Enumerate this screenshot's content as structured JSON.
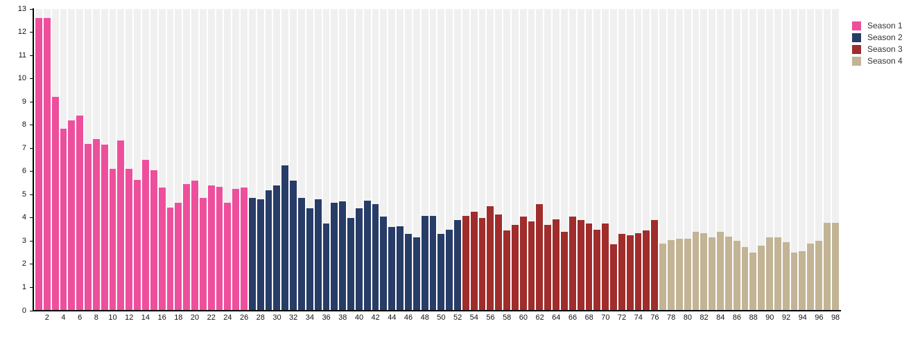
{
  "page": {
    "background": "#ffffff"
  },
  "legend": {
    "position": "top-right",
    "items": [
      {
        "label": "Season 1",
        "color": "#ee4f9d"
      },
      {
        "label": "Season 2",
        "color": "#273c67"
      },
      {
        "label": "Season 3",
        "color": "#a02c2c"
      },
      {
        "label": "Season 4",
        "color": "#c2b494"
      }
    ]
  },
  "chart_data": {
    "type": "bar",
    "title": "",
    "xlabel": "",
    "ylabel": "",
    "ylim": [
      0,
      13
    ],
    "yticks": [
      0,
      1,
      2,
      3,
      4,
      5,
      6,
      7,
      8,
      9,
      10,
      11,
      12,
      13
    ],
    "x_label_step": 2,
    "xticks": [
      2,
      4,
      6,
      8,
      10,
      12,
      14,
      16,
      18,
      20,
      22,
      24,
      26,
      28,
      30,
      32,
      34,
      36,
      38,
      40,
      42,
      44,
      46,
      48,
      50,
      52,
      54,
      56,
      58,
      60,
      62,
      64,
      66,
      68,
      70,
      72,
      74,
      76,
      78,
      80,
      82,
      84,
      86,
      88,
      90,
      92,
      94,
      96,
      98
    ],
    "grid": "off",
    "background_stripes": {
      "per_bar": true,
      "color": "#f0f0f0"
    },
    "legend_position": "top-right",
    "series": [
      {
        "name": "Season 1",
        "color": "#ee4f9d",
        "episode_range": [
          1,
          26
        ],
        "values": [
          12.6,
          12.6,
          9.2,
          7.85,
          8.2,
          8.4,
          7.2,
          7.4,
          7.15,
          6.1,
          7.35,
          6.1,
          5.65,
          6.5,
          6.05,
          5.3,
          4.45,
          4.65,
          5.45,
          5.6,
          4.85,
          5.4,
          5.35,
          4.65,
          5.25,
          5.3
        ]
      },
      {
        "name": "Season 2",
        "color": "#273c67",
        "episode_range": [
          27,
          52
        ],
        "values": [
          4.85,
          4.8,
          5.2,
          5.4,
          6.25,
          5.6,
          4.85,
          4.4,
          4.8,
          3.75,
          4.65,
          4.7,
          4.0,
          4.4,
          4.75,
          4.6,
          4.05,
          3.6,
          3.65,
          3.3,
          3.15,
          4.1,
          4.1,
          3.3,
          3.5,
          3.9
        ]
      },
      {
        "name": "Season 3",
        "color": "#a02c2c",
        "episode_range": [
          53,
          76
        ],
        "values": [
          4.1,
          4.25,
          4.0,
          4.5,
          4.15,
          3.45,
          3.7,
          4.05,
          3.85,
          4.6,
          3.7,
          3.95,
          3.4,
          4.05,
          3.9,
          3.75,
          3.5,
          3.75,
          2.85,
          3.3,
          3.25,
          3.35,
          3.45,
          3.9
        ]
      },
      {
        "name": "Season 4",
        "color": "#c2b494",
        "episode_range": [
          77,
          98
        ],
        "values": [
          2.9,
          3.05,
          3.1,
          3.1,
          3.4,
          3.35,
          3.15,
          3.4,
          3.2,
          3.0,
          2.75,
          2.5,
          2.8,
          3.15,
          3.15,
          2.95,
          2.5,
          2.55,
          2.9,
          3.0,
          3.8,
          3.8
        ]
      }
    ]
  }
}
